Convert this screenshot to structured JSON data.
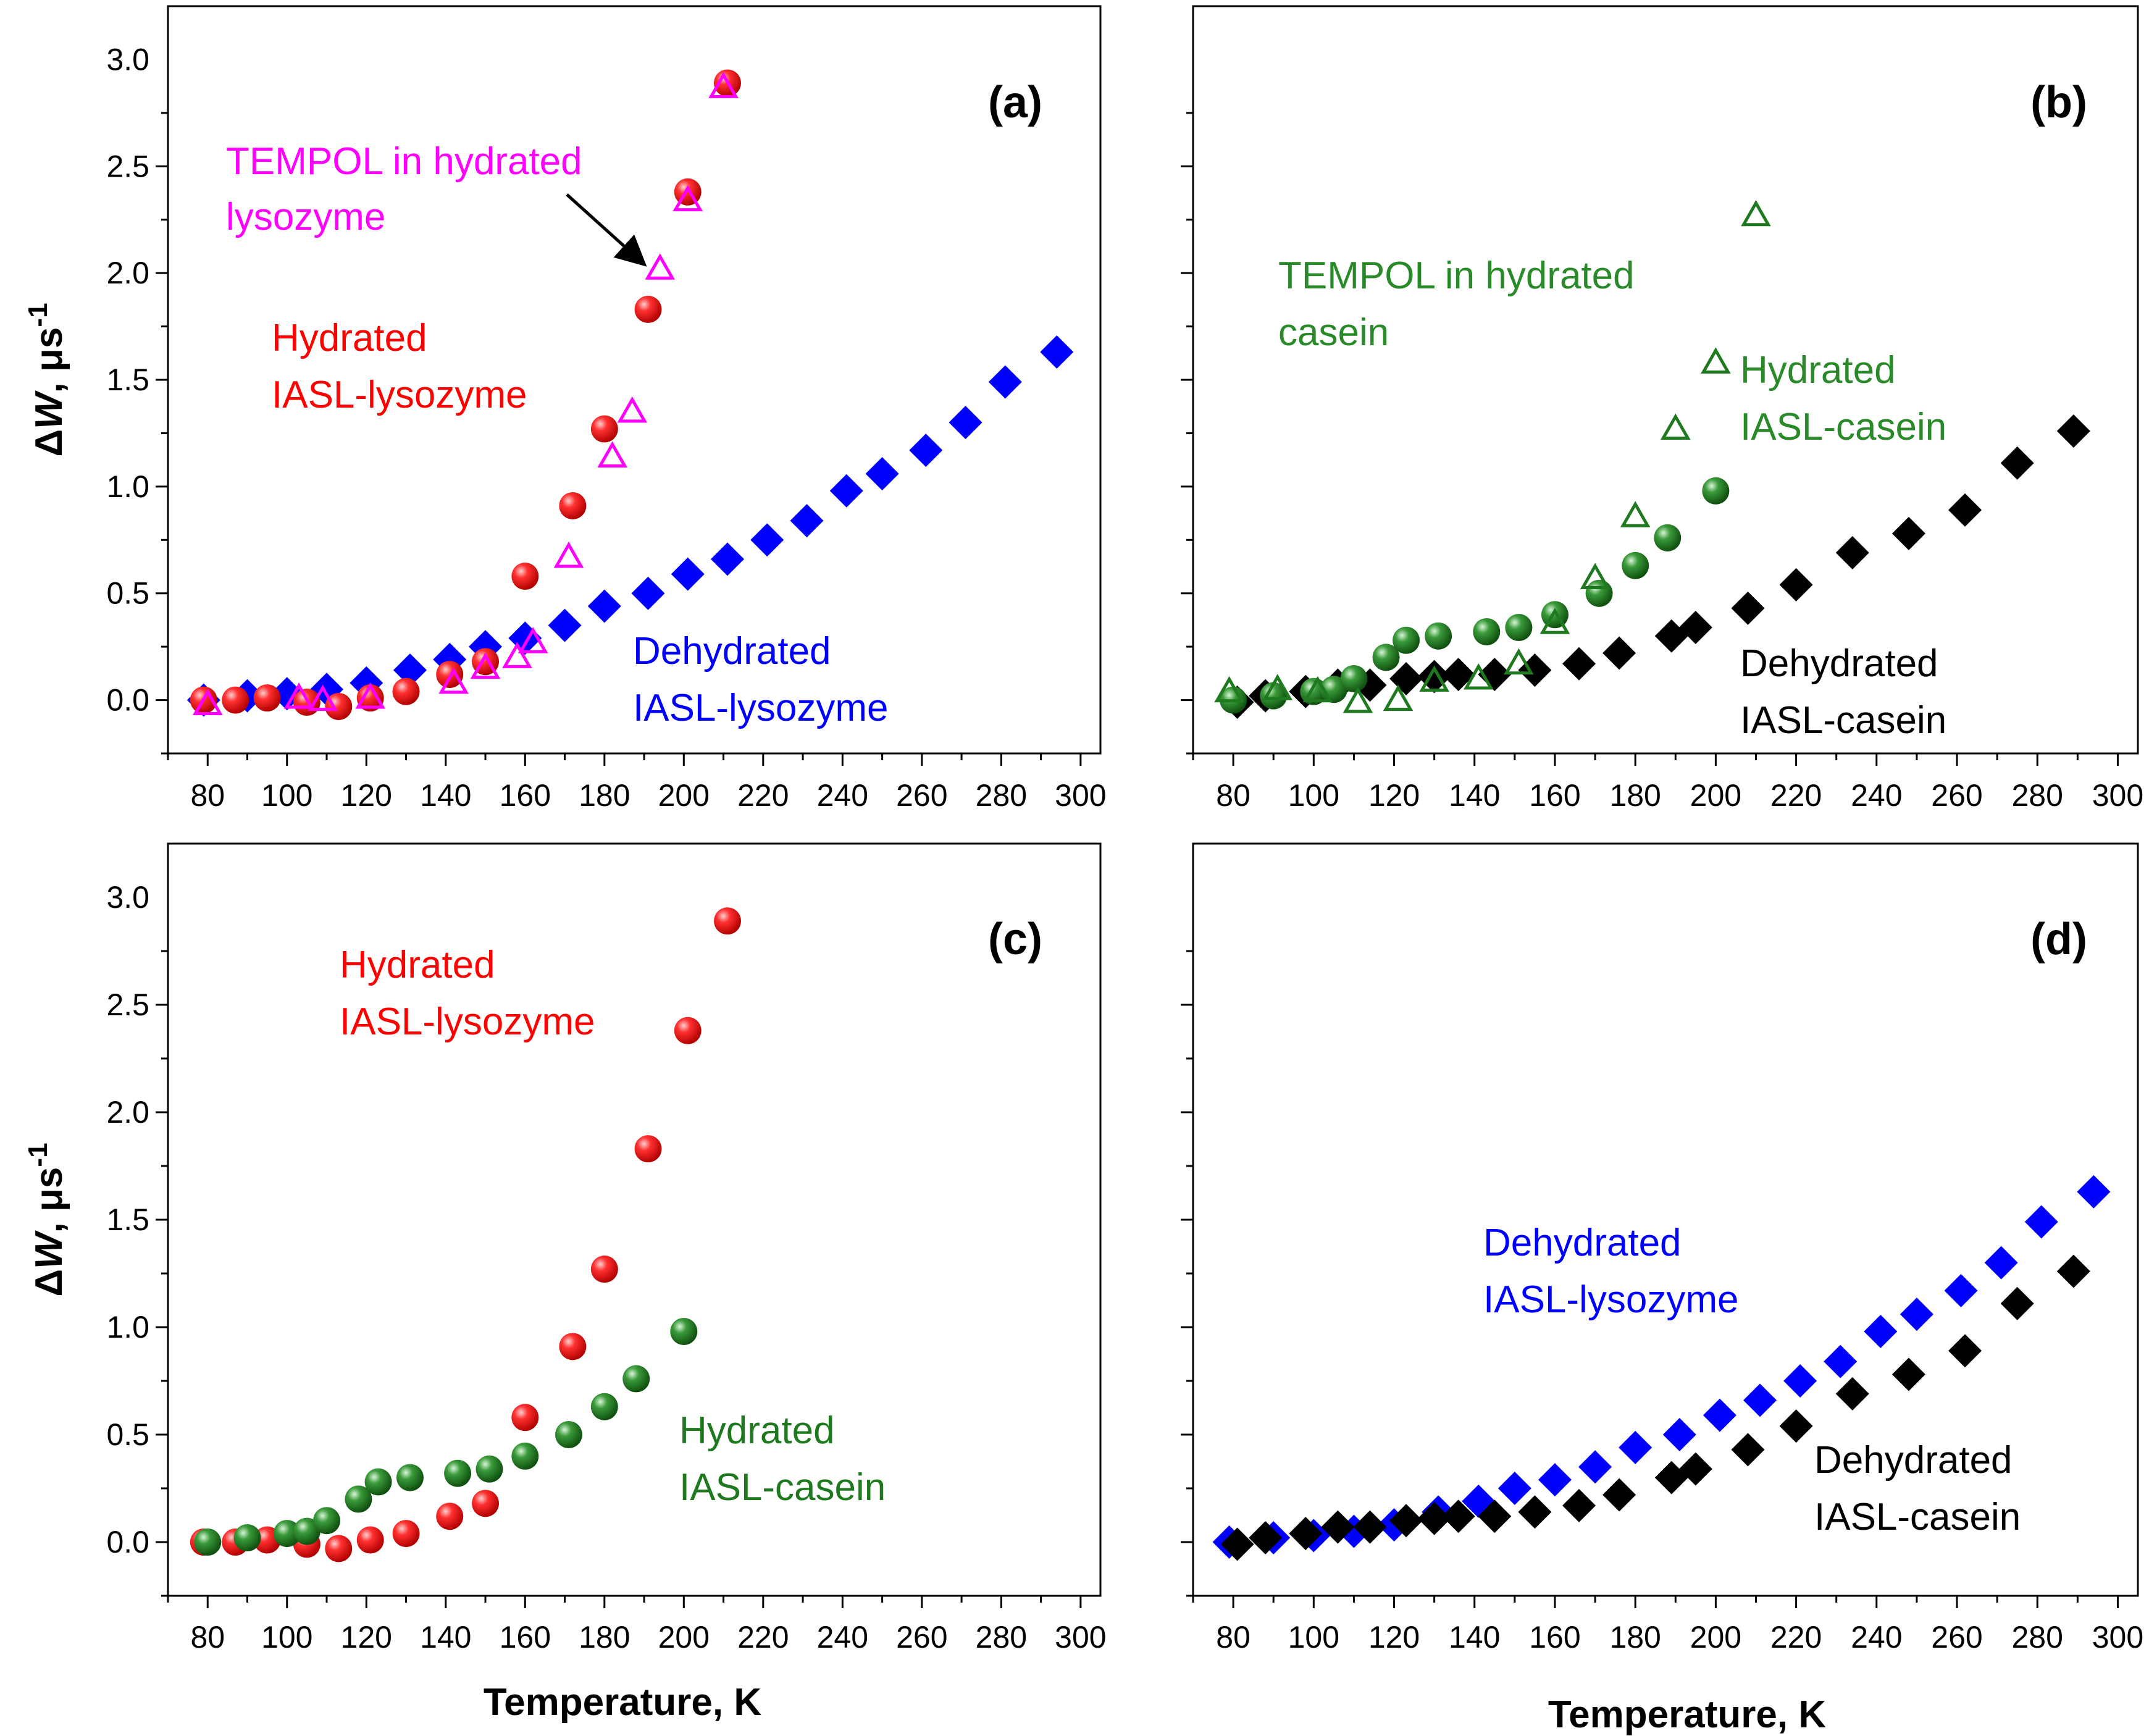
{
  "figure": {
    "panels": [
      "(a)",
      "(b)",
      "(c)",
      "(d)"
    ]
  },
  "colors": {
    "red": "#ff0000",
    "magenta": "#ff00ff",
    "blue": "#0000ff",
    "green": "#2a8a2a",
    "dark_green": "#1f7a1f",
    "black": "#000000"
  },
  "chart_data": [
    {
      "type": "scatter",
      "panel": "(a)",
      "xlabel": "Temperature, K",
      "ylabel": "ΔW, μs-1",
      "xlim": [
        70,
        305
      ],
      "ylim": [
        -0.25,
        3.25
      ],
      "xticks": [
        80,
        100,
        120,
        140,
        160,
        180,
        200,
        220,
        240,
        260,
        280,
        300
      ],
      "yticks": [
        0.0,
        0.5,
        1.0,
        1.5,
        2.0,
        2.5,
        3.0
      ],
      "series": [
        {
          "name": "Dehydrated IASL-lysozyme",
          "marker": "diamond",
          "color": "#0000ff",
          "x": [
            79,
            90,
            100,
            110,
            120,
            131,
            141,
            150,
            160,
            170,
            180,
            191,
            201,
            211,
            221,
            231,
            241,
            250,
            261,
            271,
            281,
            294
          ],
          "y": [
            0.0,
            0.02,
            0.03,
            0.05,
            0.08,
            0.14,
            0.19,
            0.25,
            0.29,
            0.35,
            0.44,
            0.5,
            0.59,
            0.66,
            0.75,
            0.84,
            0.98,
            1.06,
            1.17,
            1.3,
            1.49,
            1.63
          ]
        },
        {
          "name": "Hydrated IASL-lysozyme",
          "marker": "sphere",
          "color": "#ff0000",
          "x": [
            79,
            87,
            95,
            105,
            113,
            121,
            130,
            141,
            150,
            160,
            172,
            180,
            191,
            201,
            211
          ],
          "y": [
            0.0,
            0.0,
            0.01,
            -0.01,
            -0.03,
            0.01,
            0.04,
            0.12,
            0.18,
            0.58,
            0.91,
            1.27,
            1.83,
            2.38,
            2.89
          ]
        },
        {
          "name": "TEMPOL in hydrated lysozyme",
          "marker": "triangle-open",
          "color": "#ff00ff",
          "x": [
            80,
            103,
            109,
            121,
            142,
            150,
            158,
            162,
            171,
            182,
            187,
            194,
            201,
            210
          ],
          "y": [
            -0.02,
            0.01,
            0.0,
            0.01,
            0.08,
            0.15,
            0.2,
            0.27,
            0.67,
            1.14,
            1.35,
            2.02,
            2.34,
            2.87
          ]
        }
      ],
      "annotations": [
        {
          "lines": [
            "TEMPOL in hydrated",
            "lysozyme"
          ],
          "color": "#ff00ff"
        },
        {
          "lines": [
            "Hydrated",
            "IASL-lysozyme"
          ],
          "color": "#ff0000"
        },
        {
          "lines": [
            "Dehydrated",
            "IASL-lysozyme"
          ],
          "color": "#0000ff"
        }
      ]
    },
    {
      "type": "scatter",
      "panel": "(b)",
      "xlabel": "",
      "ylabel": "",
      "xlim": [
        70,
        305
      ],
      "ylim": [
        -0.25,
        3.25
      ],
      "xticks": [
        80,
        100,
        120,
        140,
        160,
        180,
        200,
        220,
        240,
        260,
        280,
        300
      ],
      "yticks": [],
      "series": [
        {
          "name": "Dehydrated IASL-casein",
          "marker": "diamond",
          "color": "#000000",
          "x": [
            81,
            88,
            98,
            106,
            114,
            123,
            130,
            136,
            145,
            155,
            166,
            176,
            189,
            195,
            208,
            220,
            234,
            248,
            262,
            275,
            289
          ],
          "y": [
            -0.01,
            0.02,
            0.04,
            0.07,
            0.07,
            0.1,
            0.11,
            0.12,
            0.12,
            0.14,
            0.17,
            0.22,
            0.3,
            0.34,
            0.43,
            0.54,
            0.69,
            0.78,
            0.89,
            1.11,
            1.26
          ]
        },
        {
          "name": "Hydrated IASL-casein",
          "marker": "sphere",
          "color": "#2a8a2a",
          "x": [
            80,
            90,
            100,
            105,
            110,
            118,
            123,
            131,
            143,
            151,
            160,
            171,
            180,
            188,
            200
          ],
          "y": [
            0.0,
            0.02,
            0.04,
            0.05,
            0.1,
            0.2,
            0.28,
            0.3,
            0.32,
            0.34,
            0.4,
            0.5,
            0.63,
            0.76,
            0.98
          ]
        },
        {
          "name": "TEMPOL in hydrated casein",
          "marker": "triangle-open",
          "color": "#1f7a1f",
          "x": [
            79,
            91,
            101,
            111,
            121,
            130,
            141,
            151,
            160,
            170,
            180,
            190,
            200,
            210
          ],
          "y": [
            0.04,
            0.05,
            0.04,
            -0.01,
            0.0,
            0.09,
            0.1,
            0.17,
            0.36,
            0.57,
            0.86,
            1.27,
            1.58,
            2.27
          ]
        }
      ],
      "annotations": [
        {
          "lines": [
            "TEMPOL in hydrated",
            "casein"
          ],
          "color": "#2a8a2a"
        },
        {
          "lines": [
            "Hydrated",
            "IASL-casein"
          ],
          "color": "#2a8a2a"
        },
        {
          "lines": [
            "Dehydrated",
            "IASL-casein"
          ],
          "color": "#000000"
        }
      ]
    },
    {
      "type": "scatter",
      "panel": "(c)",
      "xlabel": "Temperature, K",
      "ylabel": "ΔW, μs-1",
      "xlim": [
        70,
        305
      ],
      "ylim": [
        -0.25,
        3.25
      ],
      "xticks": [
        80,
        100,
        120,
        140,
        160,
        180,
        200,
        220,
        240,
        260,
        280,
        300
      ],
      "yticks": [
        0.0,
        0.5,
        1.0,
        1.5,
        2.0,
        2.5,
        3.0
      ],
      "series": [
        {
          "name": "Hydrated IASL-lysozyme",
          "marker": "sphere",
          "color": "#ff0000",
          "x": [
            79,
            87,
            95,
            105,
            113,
            121,
            130,
            141,
            150,
            160,
            172,
            180,
            191,
            201,
            211
          ],
          "y": [
            0.0,
            0.0,
            0.01,
            -0.01,
            -0.03,
            0.01,
            0.04,
            0.12,
            0.18,
            0.58,
            0.91,
            1.27,
            1.83,
            2.38,
            2.89
          ]
        },
        {
          "name": "Hydrated IASL-casein",
          "marker": "sphere",
          "color": "#2a8a2a",
          "x": [
            80,
            90,
            100,
            105,
            110,
            118,
            123,
            131,
            143,
            151,
            160,
            171,
            180,
            188,
            200
          ],
          "y": [
            0.0,
            0.02,
            0.04,
            0.05,
            0.1,
            0.2,
            0.28,
            0.3,
            0.32,
            0.34,
            0.4,
            0.5,
            0.63,
            0.76,
            0.98
          ]
        }
      ],
      "annotations": [
        {
          "lines": [
            "Hydrated",
            "IASL-lysozyme"
          ],
          "color": "#ff0000"
        },
        {
          "lines": [
            "Hydrated",
            "IASL-casein"
          ],
          "color": "#1f7a1f"
        }
      ]
    },
    {
      "type": "scatter",
      "panel": "(d)",
      "xlabel": "Temperature, K",
      "ylabel": "",
      "xlim": [
        70,
        305
      ],
      "ylim": [
        -0.25,
        3.25
      ],
      "xticks": [
        80,
        100,
        120,
        140,
        160,
        180,
        200,
        220,
        240,
        260,
        280,
        300
      ],
      "yticks": [],
      "series": [
        {
          "name": "Dehydrated IASL-lysozyme",
          "marker": "diamond",
          "color": "#0000ff",
          "x": [
            79,
            90,
            100,
            110,
            120,
            131,
            141,
            150,
            160,
            170,
            180,
            191,
            201,
            211,
            221,
            231,
            241,
            250,
            261,
            271,
            281,
            294
          ],
          "y": [
            0.0,
            0.02,
            0.03,
            0.05,
            0.08,
            0.14,
            0.19,
            0.25,
            0.29,
            0.35,
            0.44,
            0.5,
            0.59,
            0.66,
            0.75,
            0.84,
            0.98,
            1.06,
            1.17,
            1.3,
            1.49,
            1.63
          ]
        },
        {
          "name": "Dehydrated IASL-casein",
          "marker": "diamond",
          "color": "#000000",
          "x": [
            81,
            88,
            98,
            106,
            114,
            123,
            130,
            136,
            145,
            155,
            166,
            176,
            189,
            195,
            208,
            220,
            234,
            248,
            262,
            275,
            289
          ],
          "y": [
            -0.01,
            0.02,
            0.04,
            0.07,
            0.07,
            0.1,
            0.11,
            0.12,
            0.12,
            0.14,
            0.17,
            0.22,
            0.3,
            0.34,
            0.43,
            0.54,
            0.69,
            0.78,
            0.89,
            1.11,
            1.26
          ]
        }
      ],
      "annotations": [
        {
          "lines": [
            "Dehydrated",
            "IASL-lysozyme"
          ],
          "color": "#0000ff"
        },
        {
          "lines": [
            "Dehydrated",
            "IASL-casein"
          ],
          "color": "#000000"
        }
      ]
    }
  ]
}
